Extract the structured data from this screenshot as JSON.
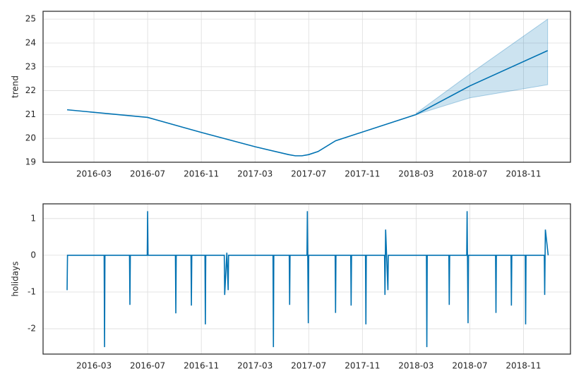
{
  "chart_data": [
    {
      "type": "line",
      "ylabel": "trend",
      "color": "#0072b2",
      "grid": true,
      "xlim": [
        -1.79,
        37.5
      ],
      "ylim": [
        19,
        25.33
      ],
      "xticks": [
        {
          "value": 2,
          "label": "2016-03"
        },
        {
          "value": 6,
          "label": "2016-07"
        },
        {
          "value": 10,
          "label": "2016-11"
        },
        {
          "value": 14,
          "label": "2017-03"
        },
        {
          "value": 18,
          "label": "2017-07"
        },
        {
          "value": 22,
          "label": "2017-11"
        },
        {
          "value": 26,
          "label": "2018-03"
        },
        {
          "value": 30,
          "label": "2018-07"
        },
        {
          "value": 34,
          "label": "2018-11"
        }
      ],
      "yticks": [
        19,
        20,
        21,
        22,
        23,
        24,
        25
      ],
      "x": [
        0,
        6,
        6.5,
        10,
        14,
        16.5,
        17,
        17.5,
        18,
        18.7,
        20,
        26,
        30,
        35.8
      ],
      "values": [
        21.2,
        20.88,
        20.8,
        20.25,
        19.65,
        19.32,
        19.27,
        19.27,
        19.32,
        19.45,
        19.9,
        21.0,
        22.2,
        23.68
      ],
      "upper": [
        null,
        null,
        null,
        null,
        null,
        null,
        null,
        null,
        null,
        null,
        null,
        21.05,
        22.7,
        25.0
      ],
      "lower": [
        null,
        null,
        null,
        null,
        null,
        null,
        null,
        null,
        null,
        null,
        null,
        21.0,
        21.7,
        22.25
      ]
    },
    {
      "type": "line",
      "ylabel": "holidays",
      "color": "#0072b2",
      "grid": true,
      "xlim": [
        -1.79,
        37.5
      ],
      "ylim": [
        -2.69,
        1.4
      ],
      "xticks": [
        {
          "value": 2,
          "label": "2016-03"
        },
        {
          "value": 6,
          "label": "2016-07"
        },
        {
          "value": 10,
          "label": "2016-11"
        },
        {
          "value": 14,
          "label": "2017-03"
        },
        {
          "value": 18,
          "label": "2017-07"
        },
        {
          "value": 22,
          "label": "2017-11"
        },
        {
          "value": 26,
          "label": "2018-03"
        },
        {
          "value": 30,
          "label": "2018-07"
        },
        {
          "value": 34,
          "label": "2018-11"
        }
      ],
      "yticks": [
        -2,
        -1,
        0,
        1
      ],
      "x": [
        0,
        0.03,
        2.76,
        2.79,
        2.82,
        4.65,
        4.68,
        4.71,
        5.97,
        6.0,
        6.03,
        8.07,
        8.1,
        8.13,
        9.23,
        9.26,
        9.29,
        10.27,
        10.3,
        10.33,
        11.71,
        11.74,
        11.9,
        12.0,
        12.03,
        15.34,
        15.37,
        15.4,
        16.55,
        16.58,
        16.61,
        17.87,
        17.9,
        17.97,
        18.0,
        19.97,
        20.0,
        20.03,
        21.13,
        21.16,
        21.19,
        22.23,
        22.26,
        22.29,
        23.65,
        23.68,
        23.73,
        23.9,
        23.93,
        26.77,
        26.8,
        26.83,
        28.44,
        28.47,
        28.5,
        29.77,
        29.8,
        29.87,
        29.9,
        31.92,
        31.95,
        31.98,
        33.07,
        33.1,
        33.13,
        34.13,
        34.16,
        34.19,
        35.55,
        35.58,
        35.63,
        35.84
      ],
      "values": [
        -0.95,
        0,
        0,
        -2.5,
        0,
        0,
        -1.35,
        0,
        0,
        1.2,
        0,
        0,
        -1.58,
        0,
        0,
        -1.37,
        0,
        0,
        -1.88,
        0,
        0,
        -1.08,
        0.07,
        -0.95,
        0,
        0,
        -2.5,
        0,
        0,
        -1.35,
        0,
        0,
        1.2,
        -1.85,
        0,
        0,
        -1.57,
        0,
        0,
        -1.37,
        0,
        0,
        -1.88,
        0,
        0,
        -1.08,
        0.7,
        -0.95,
        0,
        0,
        -2.5,
        0,
        0,
        -1.35,
        0,
        0,
        1.2,
        -1.85,
        0,
        0,
        -1.57,
        0,
        0,
        -1.37,
        0,
        0,
        -1.88,
        0,
        0,
        -1.08,
        0.7,
        0
      ]
    }
  ]
}
